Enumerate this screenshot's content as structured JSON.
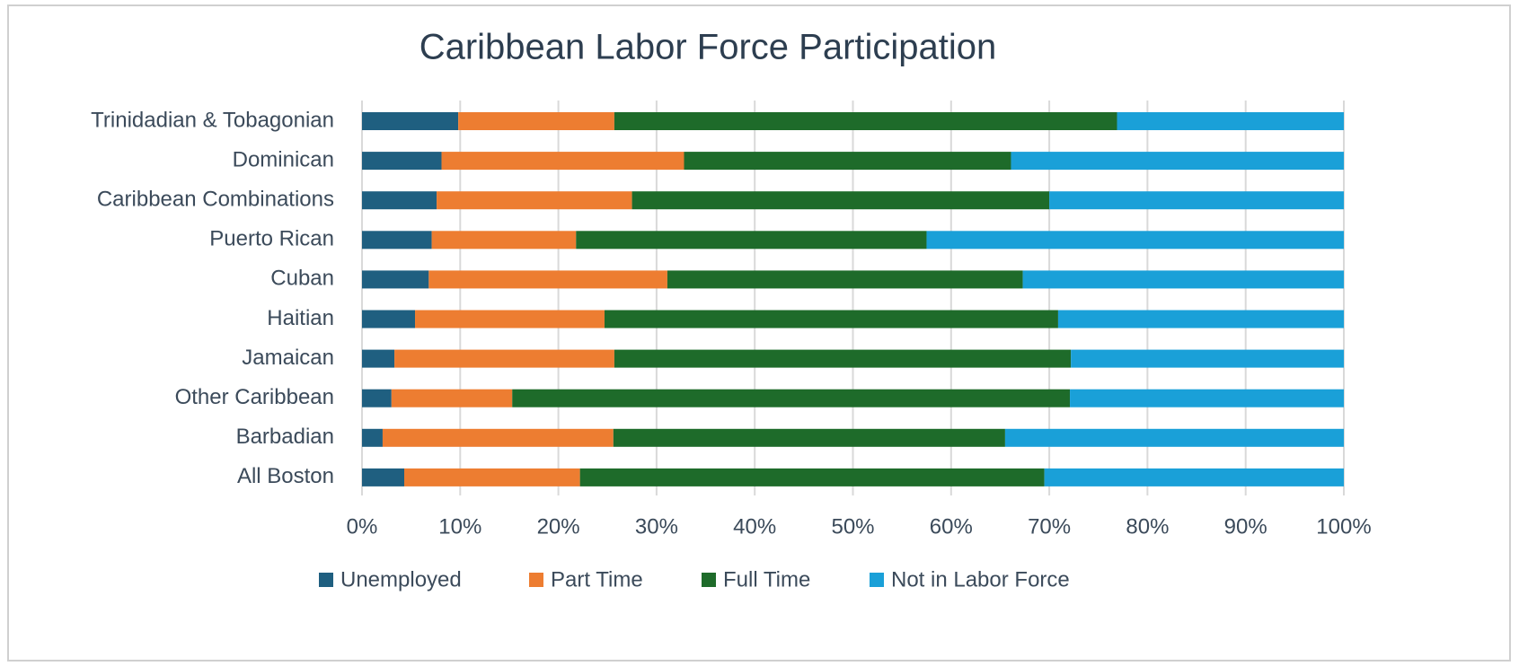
{
  "chart_data": {
    "type": "stacked_bar_horizontal",
    "title": "Caribbean Labor Force Participation",
    "categories": [
      "Trinidadian & Tobagonian",
      "Dominican",
      "Caribbean Combinations",
      "Puerto Rican",
      "Cuban",
      "Haitian",
      "Jamaican",
      "Other Caribbean",
      "Barbadian",
      "All Boston"
    ],
    "series": [
      {
        "name": "Unemployed",
        "color": "#1f5f80",
        "values": [
          9.8,
          8.1,
          7.6,
          7.1,
          6.8,
          5.4,
          3.3,
          3.0,
          2.1,
          4.3
        ]
      },
      {
        "name": "Part Time",
        "color": "#ed7d31",
        "values": [
          15.9,
          24.7,
          19.9,
          14.7,
          24.3,
          19.3,
          22.4,
          12.3,
          23.5,
          17.9
        ]
      },
      {
        "name": "Full Time",
        "color": "#1e6b2a",
        "values": [
          51.2,
          33.3,
          42.5,
          35.7,
          36.2,
          46.2,
          46.5,
          56.8,
          39.9,
          47.3
        ]
      },
      {
        "name": "Not in Labor Force",
        "color": "#1aa0d8",
        "values": [
          23.1,
          33.9,
          30.0,
          42.5,
          32.7,
          29.1,
          27.8,
          27.9,
          34.5,
          30.5
        ]
      }
    ],
    "xlim": [
      0,
      100
    ],
    "xticks": [
      {
        "value": 0,
        "label": "0%"
      },
      {
        "value": 10,
        "label": "10%"
      },
      {
        "value": 20,
        "label": "20%"
      },
      {
        "value": 30,
        "label": "30%"
      },
      {
        "value": 40,
        "label": "40%"
      },
      {
        "value": 50,
        "label": "50%"
      },
      {
        "value": 60,
        "label": "60%"
      },
      {
        "value": 70,
        "label": "70%"
      },
      {
        "value": 80,
        "label": "80%"
      },
      {
        "value": 90,
        "label": "90%"
      },
      {
        "value": 100,
        "label": "100%"
      }
    ],
    "grid": true,
    "legend": "bottom"
  }
}
